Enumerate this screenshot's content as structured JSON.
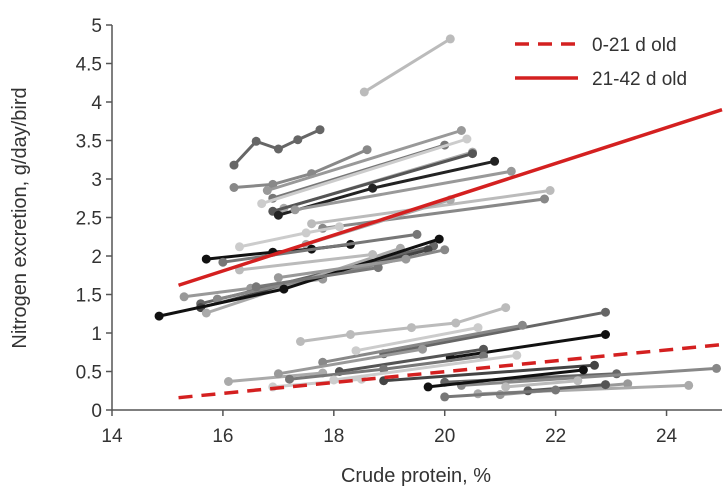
{
  "chart_data": {
    "type": "line",
    "title": "",
    "xlabel": "Crude protein, %",
    "ylabel": "Nitrogen excretion, g/day/bird",
    "xlim": [
      14,
      25
    ],
    "ylim": [
      0,
      5
    ],
    "xticks": [
      14,
      16,
      18,
      20,
      22,
      24
    ],
    "yticks": [
      {
        "v": 0,
        "label": "0"
      },
      {
        "v": 0.5,
        "label": "0.5"
      },
      {
        "v": 1,
        "label": "1"
      },
      {
        "v": 1.5,
        "label": "1.5"
      },
      {
        "v": 2,
        "label": "2"
      },
      {
        "v": 2.5,
        "label": "2.5"
      },
      {
        "v": 3,
        "label": "3"
      },
      {
        "v": 3.5,
        "label": "3.5"
      },
      {
        "v": 4,
        "label": "4"
      },
      {
        "v": 4.5,
        "label": "4.5"
      },
      {
        "v": 5,
        "label": "5"
      }
    ],
    "grid": false,
    "legend_position": "top-right",
    "regression": [
      {
        "name": "0-21 d old",
        "color": "#d42020",
        "dash": true,
        "x": [
          15.2,
          25
        ],
        "y": [
          0.16,
          0.85
        ]
      },
      {
        "name": "21-42 d old",
        "color": "#d42020",
        "dash": false,
        "x": [
          15.2,
          25
        ],
        "y": [
          1.62,
          3.9
        ]
      }
    ],
    "series": [
      {
        "color": "#bbbbbb",
        "x": [
          18.55,
          20.1
        ],
        "y": [
          4.13,
          4.82
        ]
      },
      {
        "color": "#666666",
        "x": [
          16.2,
          16.6,
          17.0,
          17.35,
          17.75
        ],
        "y": [
          3.18,
          3.49,
          3.39,
          3.51,
          3.64
        ]
      },
      {
        "color": "#888888",
        "x": [
          16.2,
          16.9,
          17.6,
          18.6
        ],
        "y": [
          2.89,
          2.93,
          3.07,
          3.38
        ]
      },
      {
        "color": "#999999",
        "x": [
          16.8,
          20.3
        ],
        "y": [
          2.85,
          3.63
        ]
      },
      {
        "color": "#777777",
        "x": [
          16.9,
          20.0
        ],
        "y": [
          2.75,
          3.44
        ]
      },
      {
        "color": "#aaaaaa",
        "x": [
          17.1,
          20.5
        ],
        "y": [
          2.62,
          3.35
        ]
      },
      {
        "color": "#555555",
        "x": [
          16.9,
          20.5
        ],
        "y": [
          2.58,
          3.33
        ]
      },
      {
        "color": "#222222",
        "x": [
          17.0,
          18.7,
          20.9
        ],
        "y": [
          2.53,
          2.88,
          3.23
        ]
      },
      {
        "color": "#cccccc",
        "x": [
          16.7,
          20.4
        ],
        "y": [
          2.68,
          3.52
        ]
      },
      {
        "color": "#999999",
        "x": [
          17.3,
          21.2
        ],
        "y": [
          2.6,
          3.1
        ]
      },
      {
        "color": "#bbbbbb",
        "x": [
          17.6,
          21.9
        ],
        "y": [
          2.42,
          2.85
        ]
      },
      {
        "color": "#888888",
        "x": [
          17.8,
          21.8
        ],
        "y": [
          2.36,
          2.74
        ]
      },
      {
        "color": "#aaaaaa",
        "x": [
          17.5,
          20.1
        ],
        "y": [
          2.15,
          2.73
        ]
      },
      {
        "color": "#111111",
        "x": [
          15.7,
          16.9,
          17.6,
          18.3
        ],
        "y": [
          1.96,
          2.05,
          2.09,
          2.15
        ]
      },
      {
        "color": "#cccccc",
        "x": [
          16.3,
          17.5,
          18.1
        ],
        "y": [
          2.12,
          2.3,
          2.38
        ]
      },
      {
        "color": "#777777",
        "x": [
          16.0,
          19.5
        ],
        "y": [
          1.92,
          2.28
        ]
      },
      {
        "color": "#999999",
        "x": [
          15.3,
          16.5,
          17.8
        ],
        "y": [
          1.47,
          1.58,
          1.7
        ]
      },
      {
        "color": "#666666",
        "x": [
          15.6,
          19.8
        ],
        "y": [
          1.38,
          2.13
        ]
      },
      {
        "color": "#444444",
        "x": [
          15.6,
          19.7
        ],
        "y": [
          1.33,
          2.08
        ]
      },
      {
        "color": "#aaaaaa",
        "x": [
          15.7,
          19.2
        ],
        "y": [
          1.26,
          2.1
        ]
      },
      {
        "color": "#888888",
        "x": [
          15.9,
          20.0
        ],
        "y": [
          1.44,
          2.08
        ]
      },
      {
        "color": "#111111",
        "x": [
          14.85,
          17.1,
          19.9
        ],
        "y": [
          1.22,
          1.57,
          2.22
        ]
      },
      {
        "color": "#777777",
        "x": [
          16.6,
          18.8
        ],
        "y": [
          1.6,
          1.85
        ]
      },
      {
        "color": "#999999",
        "x": [
          17.0,
          19.3
        ],
        "y": [
          1.72,
          1.96
        ]
      },
      {
        "color": "#bbbbbb",
        "x": [
          16.3,
          18.7
        ],
        "y": [
          1.82,
          2.02
        ]
      },
      {
        "color": "#bbbbbb",
        "x": [
          17.4,
          18.3,
          19.4,
          20.2,
          21.1
        ],
        "y": [
          0.89,
          0.98,
          1.07,
          1.13,
          1.33
        ]
      },
      {
        "color": "#666666",
        "x": [
          18.9,
          22.9
        ],
        "y": [
          0.73,
          1.27
        ]
      },
      {
        "color": "#111111",
        "x": [
          20.1,
          22.9
        ],
        "y": [
          0.68,
          0.98
        ]
      },
      {
        "color": "#888888",
        "x": [
          17.8,
          21.4
        ],
        "y": [
          0.62,
          1.1
        ]
      },
      {
        "color": "#cccccc",
        "x": [
          18.4,
          20.6
        ],
        "y": [
          0.77,
          1.07
        ]
      },
      {
        "color": "#aaaaaa",
        "x": [
          16.1,
          17.8
        ],
        "y": [
          0.37,
          0.48
        ]
      },
      {
        "color": "#999999",
        "x": [
          17.0,
          19.6
        ],
        "y": [
          0.47,
          0.79
        ]
      },
      {
        "color": "#555555",
        "x": [
          18.1,
          20.7
        ],
        "y": [
          0.5,
          0.79
        ]
      },
      {
        "color": "#777777",
        "x": [
          17.2,
          18.9,
          20.7
        ],
        "y": [
          0.4,
          0.53,
          0.7
        ]
      },
      {
        "color": "#cccccc",
        "x": [
          18.0,
          21.3
        ],
        "y": [
          0.39,
          0.71
        ]
      },
      {
        "color": "#444444",
        "x": [
          18.9,
          22.7
        ],
        "y": [
          0.38,
          0.58
        ]
      },
      {
        "color": "#666666",
        "x": [
          20.0,
          23.1
        ],
        "y": [
          0.36,
          0.47
        ]
      },
      {
        "color": "#888888",
        "x": [
          20.3,
          24.9
        ],
        "y": [
          0.32,
          0.54
        ]
      },
      {
        "color": "#111111",
        "x": [
          19.7,
          22.5
        ],
        "y": [
          0.3,
          0.52
        ]
      },
      {
        "color": "#999999",
        "x": [
          21.0,
          23.3
        ],
        "y": [
          0.2,
          0.34
        ]
      },
      {
        "color": "#aaaaaa",
        "x": [
          20.6,
          24.4
        ],
        "y": [
          0.21,
          0.32
        ]
      },
      {
        "color": "#555555",
        "x": [
          21.5,
          22.9
        ],
        "y": [
          0.25,
          0.33
        ]
      },
      {
        "color": "#bbbbbb",
        "x": [
          21.1,
          22.4
        ],
        "y": [
          0.3,
          0.38
        ]
      },
      {
        "color": "#777777",
        "x": [
          20.0,
          22.0
        ],
        "y": [
          0.17,
          0.26
        ]
      },
      {
        "color": "#cccccc",
        "x": [
          16.9,
          18.5
        ],
        "y": [
          0.3,
          0.4
        ]
      }
    ]
  }
}
